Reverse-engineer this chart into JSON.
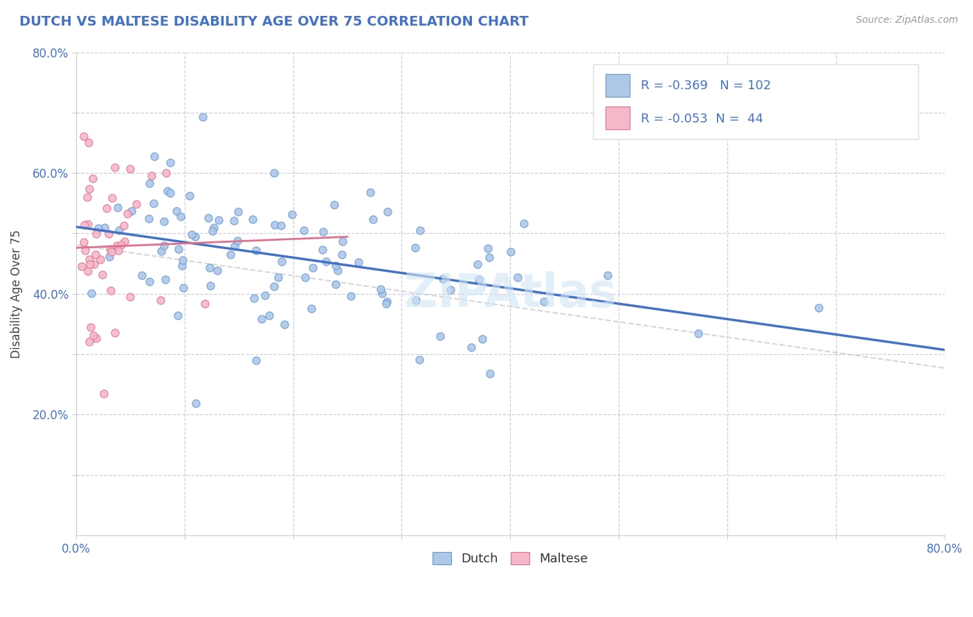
{
  "title": "DUTCH VS MALTESE DISABILITY AGE OVER 75 CORRELATION CHART",
  "source_text": "Source: ZipAtlas.com",
  "ylabel": "Disability Age Over 75",
  "xlim": [
    0.0,
    0.8
  ],
  "ylim": [
    0.0,
    0.8
  ],
  "dutch_R": -0.369,
  "dutch_N": 102,
  "maltese_R": -0.053,
  "maltese_N": 44,
  "dutch_color": "#adc8e8",
  "dutch_edge_color": "#6898d0",
  "maltese_color": "#f4b8c8",
  "maltese_edge_color": "#e07090",
  "dutch_trend_color": "#4472c4",
  "maltese_trend_color": "#e07090",
  "dashed_trend_color": "#cccccc",
  "background_color": "#ffffff",
  "grid_color": "#ccccdd",
  "title_color": "#4472c4",
  "axis_label_color": "#4472c4",
  "ylabel_color": "#444444",
  "source_color": "#999999",
  "watermark_color": "#d0e4f4",
  "legend_border_color": "#dddddd"
}
